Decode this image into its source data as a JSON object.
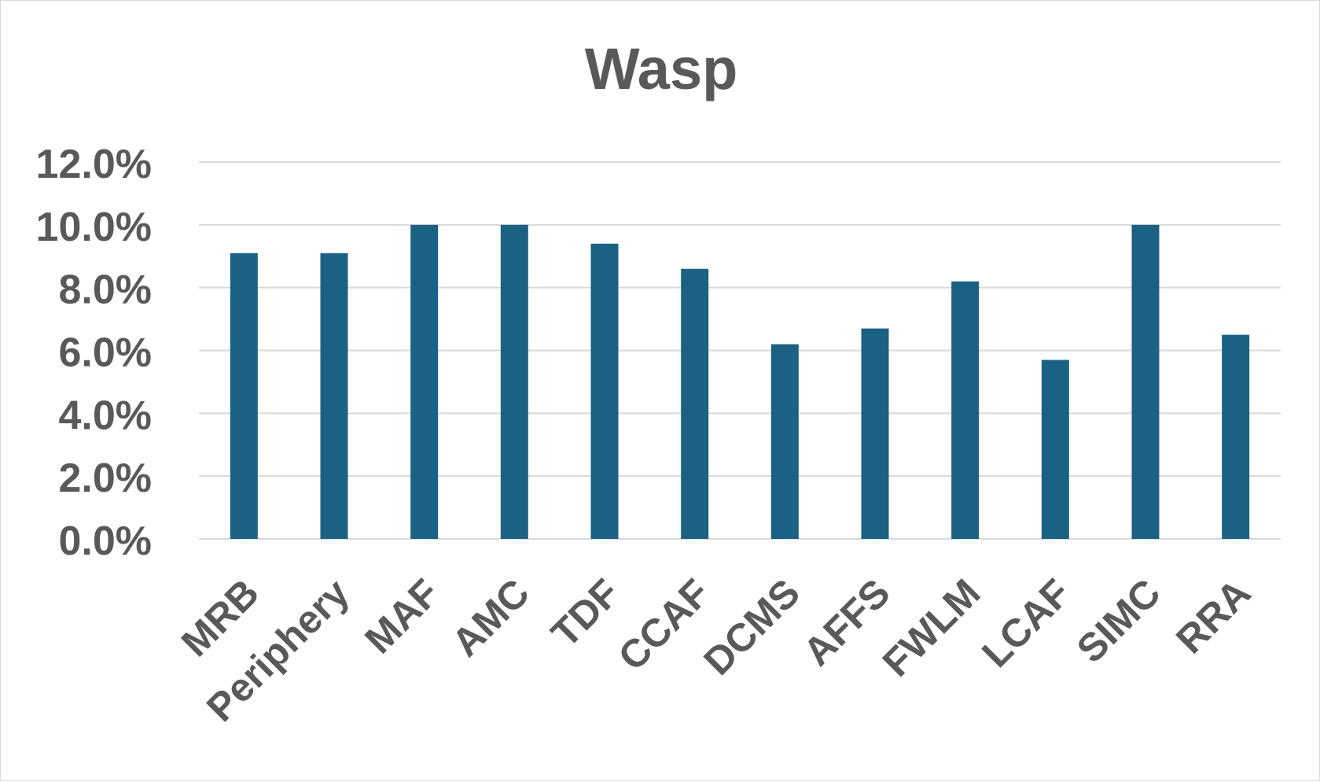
{
  "chart_data": {
    "type": "bar",
    "title": "Wasp",
    "xlabel": "",
    "ylabel": "",
    "categories": [
      "MRB",
      "Periphery",
      "MAF",
      "AMC",
      "TDF",
      "CCAF",
      "DCMS",
      "AFFS",
      "FWLM",
      "LCAF",
      "SIMC",
      "RRA"
    ],
    "series": [
      {
        "values": [
          9.1,
          9.1,
          10.0,
          10.0,
          9.4,
          8.6,
          6.2,
          6.7,
          8.2,
          5.7,
          10.0,
          6.5
        ]
      }
    ],
    "ylim": [
      0,
      12
    ],
    "y_ticks": [
      "0.0%",
      "2.0%",
      "4.0%",
      "6.0%",
      "8.0%",
      "10.0%",
      "12.0%"
    ],
    "y_tick_values": [
      0,
      2,
      4,
      6,
      8,
      10,
      12
    ],
    "grid": true,
    "legend": "none",
    "colors": {
      "bar": "#1b6183",
      "grid": "#d9d9d9",
      "text": "#595959"
    }
  }
}
